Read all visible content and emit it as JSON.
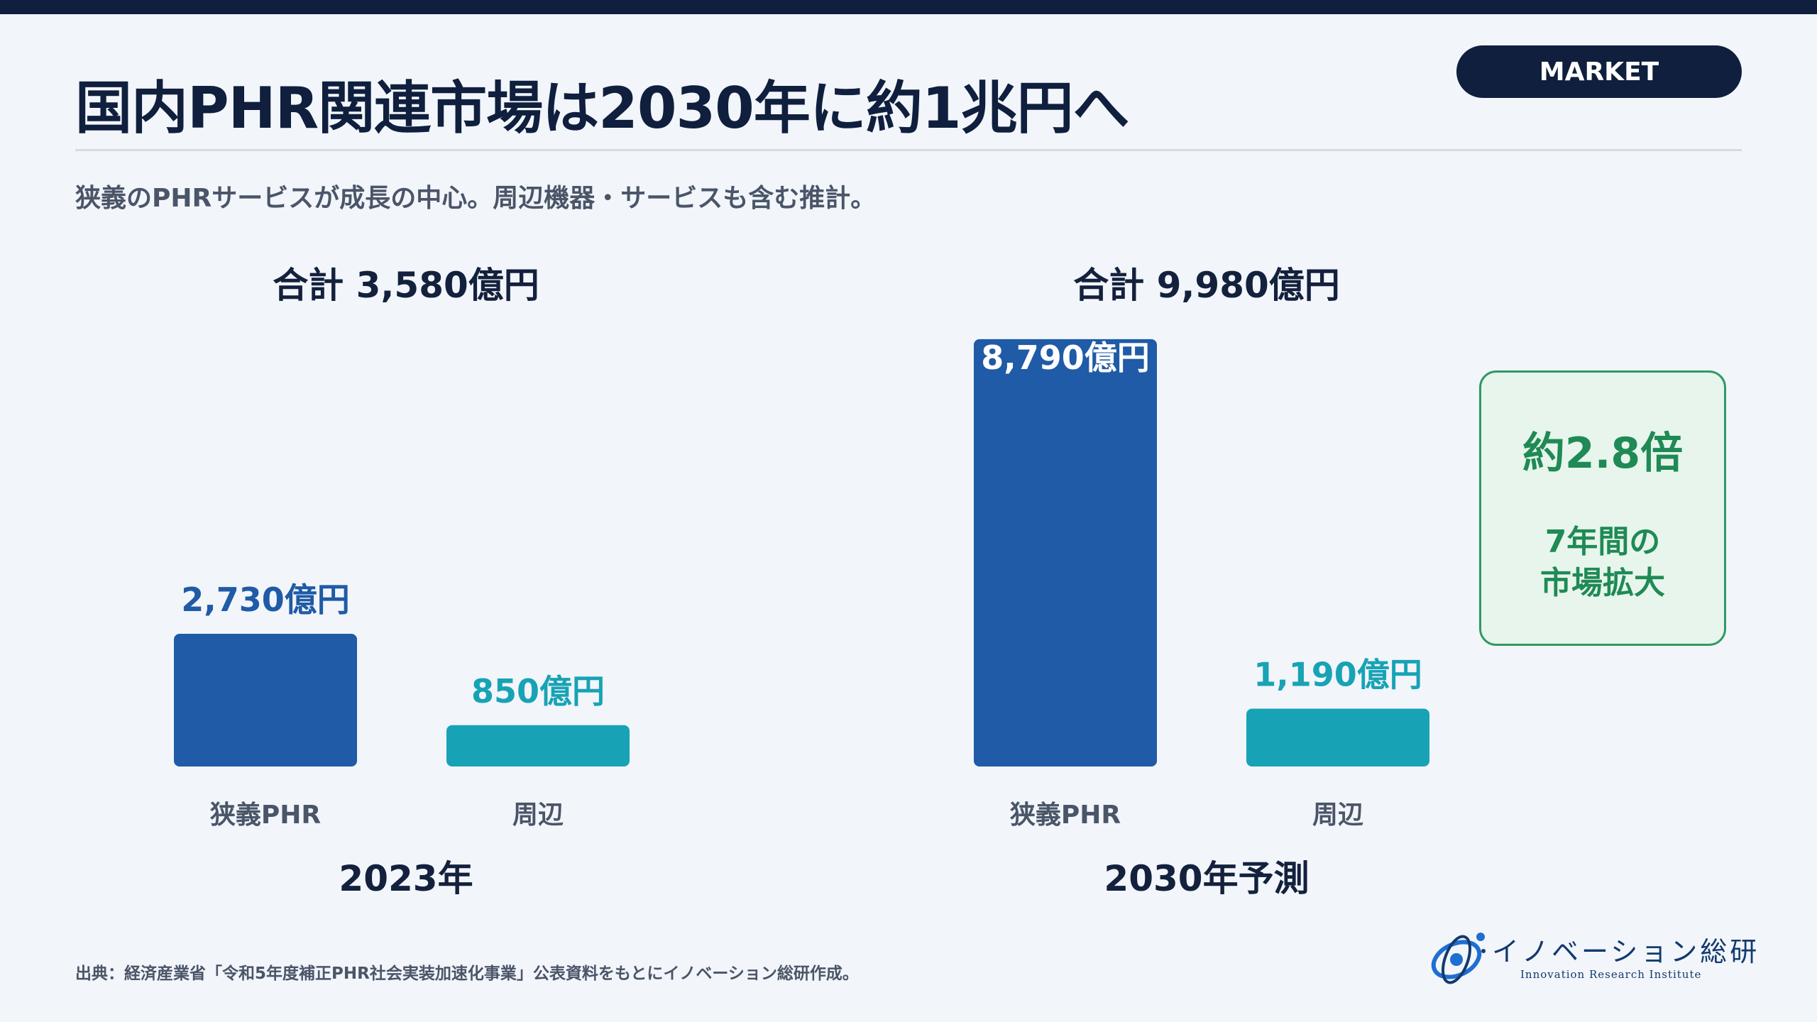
{
  "header": {
    "title": "国内PHR関連市場は2030年に約1兆円へ",
    "badge": "MARKET",
    "subtitle": "狭義のPHRサービスが成長の中心。周辺機器・サービスも含む推計。"
  },
  "colors": {
    "navy": "#0f1f3d",
    "phr_bar": "#1f5ba6",
    "periphery_bar": "#17a3b5",
    "growth_green": "#1f8a55"
  },
  "chart_data": {
    "type": "bar",
    "unit": "億円",
    "groups": [
      {
        "label": "2023年",
        "total_label": "合計 3,580億円",
        "total": 3580,
        "bars": [
          {
            "category": "狭義PHR",
            "value": 2730,
            "value_label": "2,730億円"
          },
          {
            "category": "周辺",
            "value": 850,
            "value_label": "850億円"
          }
        ]
      },
      {
        "label": "2030年予測",
        "total_label": "合計 9,980億円",
        "total": 9980,
        "bars": [
          {
            "category": "狭義PHR",
            "value": 8790,
            "value_label": "8,790億円"
          },
          {
            "category": "周辺",
            "value": 1190,
            "value_label": "1,190億円"
          }
        ]
      }
    ]
  },
  "growth": {
    "ratio": "約2.8倍",
    "line1": "7年間の",
    "line2": "市場拡大"
  },
  "footer": {
    "source": "出典：経済産業省「令和5年度補正PHR社会実装加速化事業」公表資料をもとにイノベーション総研作成。",
    "logo_name": "イノベーション総研",
    "logo_sub": "Innovation Research Institute"
  }
}
